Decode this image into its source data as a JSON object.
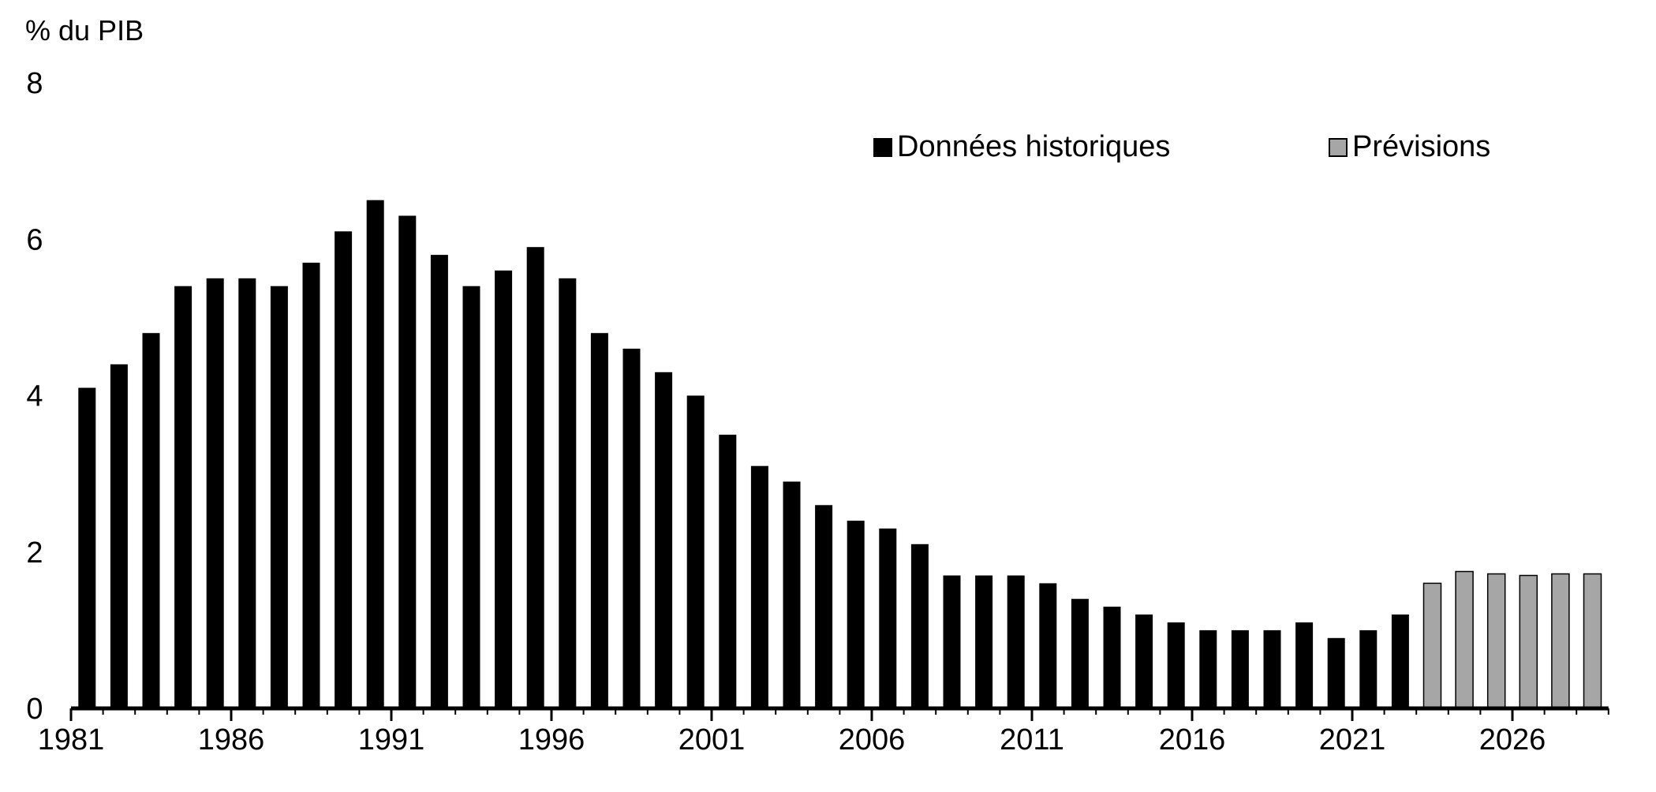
{
  "chart_data": {
    "type": "bar",
    "ylabel": "% du PIB",
    "ylim": [
      0,
      8
    ],
    "yticks": [
      0,
      2,
      4,
      6,
      8
    ],
    "xtick_labels": [
      "1981",
      "1986",
      "1991",
      "1996",
      "2001",
      "2006",
      "2011",
      "2016",
      "2021",
      "2026"
    ],
    "categories": [
      1981,
      1982,
      1983,
      1984,
      1985,
      1986,
      1987,
      1988,
      1989,
      1990,
      1991,
      1992,
      1993,
      1994,
      1995,
      1996,
      1997,
      1998,
      1999,
      2000,
      2001,
      2002,
      2003,
      2004,
      2005,
      2006,
      2007,
      2008,
      2009,
      2010,
      2011,
      2012,
      2013,
      2014,
      2015,
      2016,
      2017,
      2018,
      2019,
      2020,
      2021,
      2022,
      2023,
      2024,
      2025,
      2026,
      2027,
      2028
    ],
    "series": [
      {
        "name": "Données historiques",
        "color": "#000000",
        "values": [
          4.1,
          4.4,
          4.8,
          5.4,
          5.5,
          5.5,
          5.4,
          5.7,
          6.1,
          6.5,
          6.3,
          5.8,
          5.4,
          5.6,
          5.9,
          5.5,
          4.8,
          4.6,
          4.3,
          4.0,
          3.5,
          3.1,
          2.9,
          2.6,
          2.4,
          2.3,
          2.1,
          1.7,
          1.7,
          1.7,
          1.6,
          1.4,
          1.3,
          1.2,
          1.1,
          1.0,
          1.0,
          1.0,
          1.1,
          0.9,
          1.0,
          1.2,
          null,
          null,
          null,
          null,
          null,
          null
        ]
      },
      {
        "name": "Prévisions",
        "color": "#a6a6a6",
        "values": [
          null,
          null,
          null,
          null,
          null,
          null,
          null,
          null,
          null,
          null,
          null,
          null,
          null,
          null,
          null,
          null,
          null,
          null,
          null,
          null,
          null,
          null,
          null,
          null,
          null,
          null,
          null,
          null,
          null,
          null,
          null,
          null,
          null,
          null,
          null,
          null,
          null,
          null,
          null,
          null,
          null,
          null,
          1.6,
          1.75,
          1.72,
          1.7,
          1.72,
          1.72
        ]
      }
    ],
    "legend": {
      "position": "top-right"
    },
    "grid": false
  }
}
